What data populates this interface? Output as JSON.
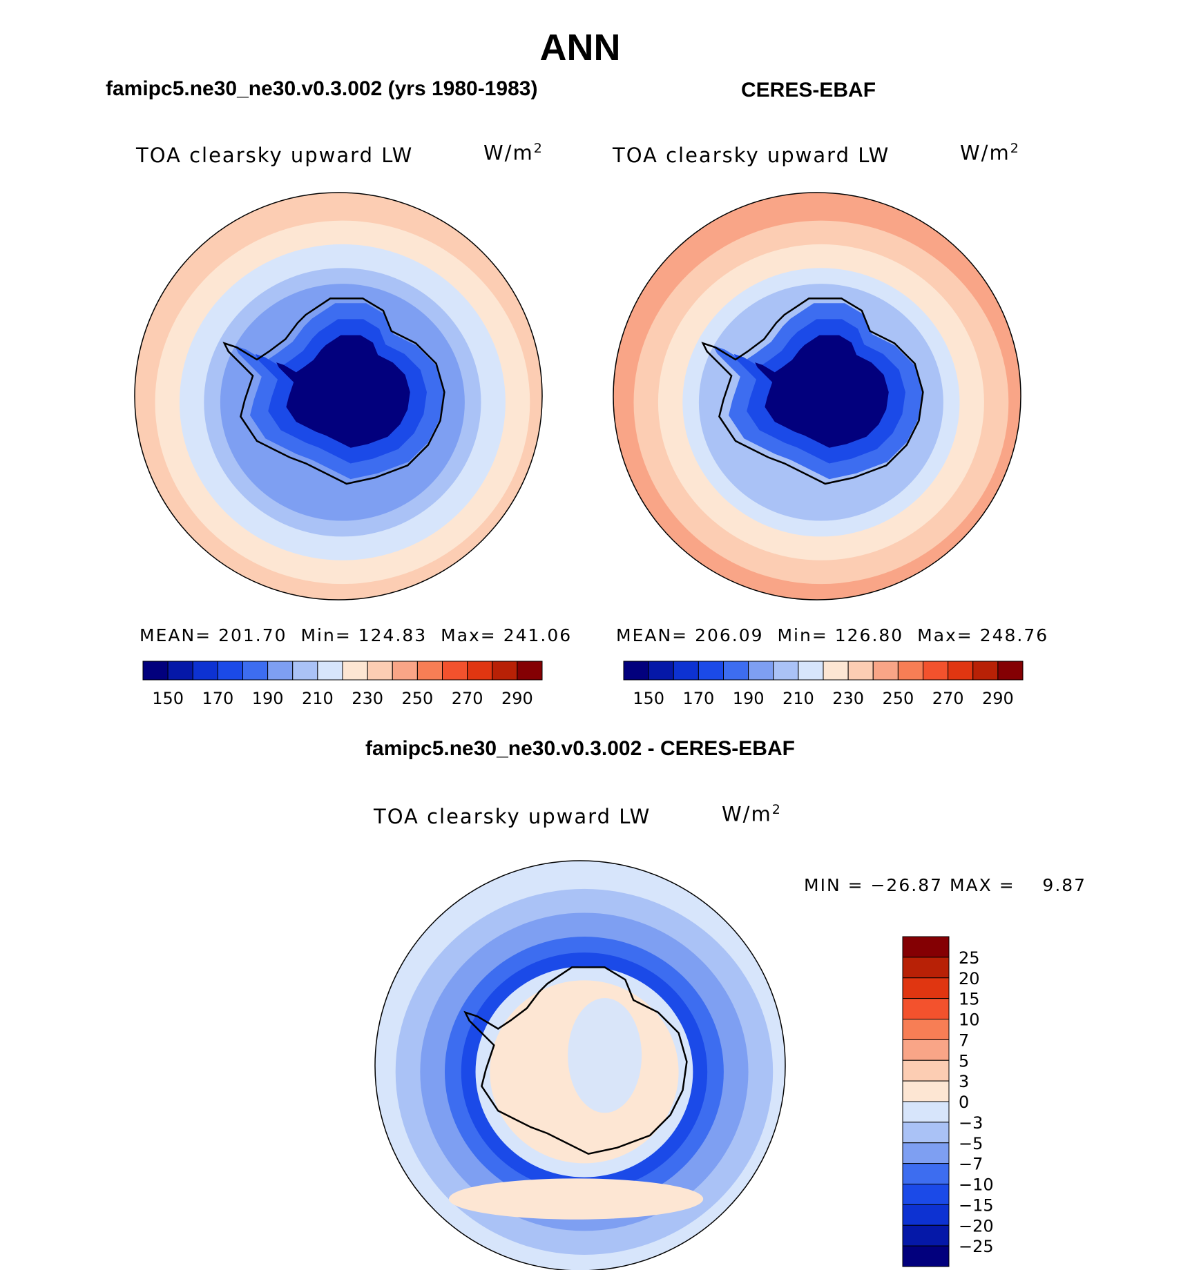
{
  "page": {
    "title": "ANN"
  },
  "chart_data": [
    {
      "type": "heatmap",
      "projection": "south-polar-stereographic",
      "header": "famipc5.ne30_ne30.v0.3.002 (yrs 1980-1983)",
      "variable": "TOA clearsky upward LW",
      "units_text": "W/m",
      "units_exp": "2",
      "stats": {
        "mean_label": "MEAN=",
        "mean": "201.70",
        "min_label": "Min=",
        "min": "124.83",
        "max_label": "Max=",
        "max": "241.06"
      },
      "colorbar": {
        "orientation": "horizontal",
        "levels": [
          140,
          150,
          160,
          170,
          180,
          190,
          200,
          210,
          220,
          230,
          240,
          250,
          260,
          270,
          280,
          290
        ],
        "tick_labels": [
          "150",
          "170",
          "190",
          "210",
          "230",
          "250",
          "270",
          "290"
        ],
        "colors": [
          "#02007d",
          "#0518a8",
          "#0d32d2",
          "#1b4ae8",
          "#3d6df0",
          "#7e9ff2",
          "#aac2f6",
          "#d7e5fb",
          "#fde6d3",
          "#fccdb3",
          "#f9a587",
          "#f77e55",
          "#f3522d",
          "#e03611",
          "#b82106",
          "#840003"
        ]
      },
      "field_levels": [
        "#fccdb3",
        "#fde6d3",
        "#d7e5fb",
        "#aac2f6",
        "#7e9ff2",
        "#3d6df0",
        "#1b4ae8",
        "#02007d"
      ]
    },
    {
      "type": "heatmap",
      "projection": "south-polar-stereographic",
      "header": "CERES-EBAF",
      "variable": "TOA clearsky upward LW",
      "units_text": "W/m",
      "units_exp": "2",
      "stats": {
        "mean_label": "MEAN=",
        "mean": "206.09",
        "min_label": "Min=",
        "min": "126.80",
        "max_label": "Max=",
        "max": "248.76"
      },
      "colorbar": {
        "orientation": "horizontal",
        "levels": [
          140,
          150,
          160,
          170,
          180,
          190,
          200,
          210,
          220,
          230,
          240,
          250,
          260,
          270,
          280,
          290
        ],
        "tick_labels": [
          "150",
          "170",
          "190",
          "210",
          "230",
          "250",
          "270",
          "290"
        ],
        "colors": [
          "#02007d",
          "#0518a8",
          "#0d32d2",
          "#1b4ae8",
          "#3d6df0",
          "#7e9ff2",
          "#aac2f6",
          "#d7e5fb",
          "#fde6d3",
          "#fccdb3",
          "#f9a587",
          "#f77e55",
          "#f3522d",
          "#e03611",
          "#b82106",
          "#840003"
        ]
      },
      "field_levels": [
        "#f9a587",
        "#fccdb3",
        "#fde6d3",
        "#d7e5fb",
        "#aac2f6",
        "#3d6df0",
        "#1b4ae8",
        "#02007d"
      ]
    },
    {
      "type": "heatmap",
      "projection": "south-polar-stereographic",
      "header": "famipc5.ne30_ne30.v0.3.002 - CERES-EBAF",
      "variable": "TOA clearsky upward LW",
      "units_text": "W/m",
      "units_exp": "2",
      "stats_text": "MIN = −26.87 MAX =    9.87",
      "colorbar": {
        "orientation": "vertical",
        "tick_labels": [
          "25",
          "20",
          "15",
          "10",
          "7",
          "5",
          "3",
          "0",
          "−3",
          "−5",
          "−7",
          "−10",
          "−15",
          "−20",
          "−25"
        ],
        "colors_top_to_bottom": [
          "#840003",
          "#b82106",
          "#e03611",
          "#f3522d",
          "#f77e55",
          "#f9a587",
          "#fccdb3",
          "#fde6d3",
          "#d7e5fb",
          "#aac2f6",
          "#7e9ff2",
          "#3d6df0",
          "#1b4ae8",
          "#0d32d2",
          "#0518a8",
          "#02007d"
        ]
      },
      "field_levels": [
        "#d7e5fb",
        "#aac2f6",
        "#7e9ff2",
        "#3d6df0",
        "#1b4ae8",
        "#d7e5fb",
        "#fde6d3"
      ]
    }
  ]
}
